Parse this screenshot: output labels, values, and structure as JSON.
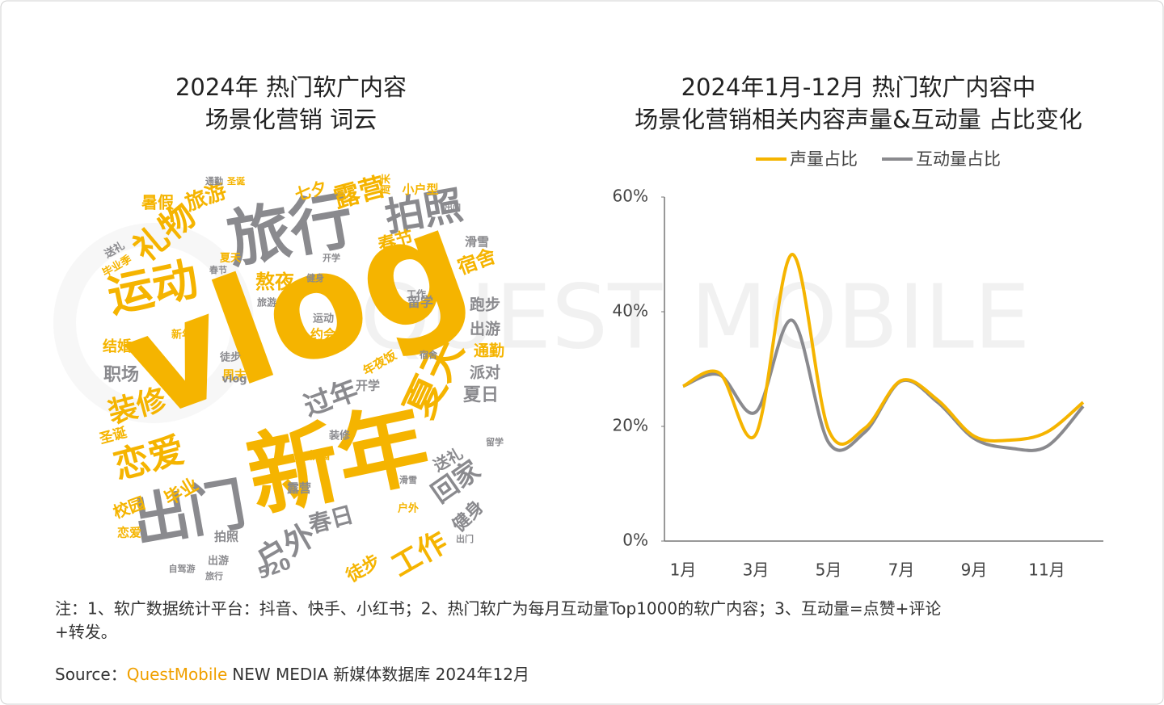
{
  "watermark": "QUEST MOBILE",
  "left_panel": {
    "title": [
      "2024年 热门软广内容",
      "场景化营销 词云"
    ],
    "words": [
      "vlog",
      "新年",
      "旅行",
      "出门",
      "运动",
      "夏天",
      "拍照",
      "礼物",
      "恋爱",
      "装修",
      "户外",
      "工作",
      "过年",
      "露营",
      "回家",
      "春日",
      "旅游",
      "宿舍",
      "熬夜",
      "春节",
      "七夕",
      "暑假",
      "跑步",
      "出游",
      "通勤",
      "派对",
      "夏日",
      "健身",
      "送礼",
      "职场",
      "结婚",
      "毕业",
      "校园",
      "徒步",
      "520",
      "留学",
      "约会",
      "年夜饭",
      "开学",
      "圣诞",
      "周末",
      "滑雪",
      "小户型",
      "毕业季",
      "送礼",
      "新年",
      "工作",
      "旅游",
      "运动",
      "健身",
      "开学",
      "夏天",
      "春节",
      "vlog",
      "徒步",
      "装修",
      "露营",
      "校园",
      "拍照",
      "出游",
      "旅行",
      "自驾游",
      "恋爱",
      "出门",
      "留学",
      "宿舍",
      "户外",
      "滑雪",
      "通勤",
      "圣诞",
      "周末",
      "出门"
    ]
  },
  "chart_data": {
    "type": "line",
    "title": [
      "2024年1月-12月 热门软广内容中",
      "场景化营销相关内容声量&互动量 占比变化"
    ],
    "categories": [
      "1月",
      null,
      "3月",
      null,
      "5月",
      null,
      "7月",
      null,
      "9月",
      null,
      "11月",
      null
    ],
    "series": [
      {
        "name": "声量占比",
        "color": "#f5b400",
        "values": [
          27,
          29.3,
          18.6,
          50,
          19.4,
          19.7,
          28,
          24.6,
          18.3,
          17.6,
          19,
          24.2
        ]
      },
      {
        "name": "互动量占比",
        "color": "#8a8a8e",
        "values": [
          27,
          29,
          22.5,
          38.5,
          17.2,
          19,
          27.9,
          24.2,
          17.9,
          16.2,
          16.5,
          23.5
        ]
      }
    ],
    "ylim": [
      0,
      60
    ],
    "yticks": [
      {
        "value": 0,
        "label": "0%"
      },
      {
        "value": 20,
        "label": "20%"
      },
      {
        "value": 40,
        "label": "40%"
      },
      {
        "value": 60,
        "label": "60%"
      }
    ],
    "grid": false,
    "legend": "top"
  },
  "footer": {
    "note": [
      "注：1、软广数据统计平台：抖音、快手、小红书；2、热门软广为每月互动量Top1000的软广内容；3、互动量=点赞+评论",
      "+转发。"
    ],
    "source_label": "Source：",
    "source_brand": "QuestMobile",
    "source_text": "NEW MEDIA 新媒体数据库 2024年12月"
  }
}
